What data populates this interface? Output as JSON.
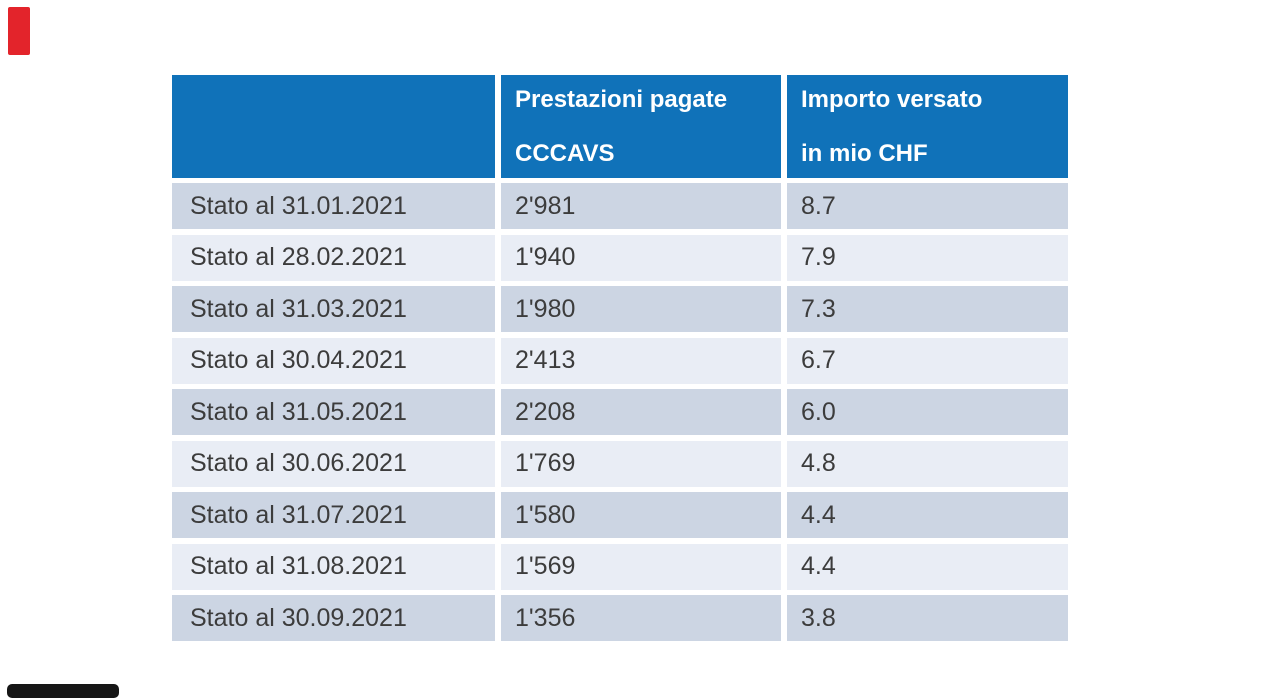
{
  "slide": {
    "background": "#ffffff"
  },
  "decorations": {
    "red_marker_color": "#e3242b",
    "black_bar_color": "#161616"
  },
  "table": {
    "header": {
      "col1_label": "",
      "col2": {
        "line1": "Prestazioni pagate",
        "line2": "CCCAVS"
      },
      "col3": {
        "line1": "Importo versato",
        "line2": "in mio CHF"
      }
    },
    "rows": [
      {
        "label": "Stato al 31.01.2021",
        "prestazioni": "2'981",
        "importo": "8.7"
      },
      {
        "label": "Stato al 28.02.2021",
        "prestazioni": "1'940",
        "importo": "7.9"
      },
      {
        "label": "Stato al 31.03.2021",
        "prestazioni": "1'980",
        "importo": "7.3"
      },
      {
        "label": "Stato al 30.04.2021",
        "prestazioni": "2'413",
        "importo": "6.7"
      },
      {
        "label": "Stato al 31.05.2021",
        "prestazioni": "2'208",
        "importo": "6.0"
      },
      {
        "label": "Stato al 30.06.2021",
        "prestazioni": "1'769",
        "importo": "4.8"
      },
      {
        "label": "Stato al 31.07.2021",
        "prestazioni": "1'580",
        "importo": "4.4"
      },
      {
        "label": "Stato al 31.08.2021",
        "prestazioni": "1'569",
        "importo": "4.4"
      },
      {
        "label": "Stato al 30.09.2021",
        "prestazioni": "1'356",
        "importo": "3.8"
      }
    ],
    "colors": {
      "header_bg": "#1072b9",
      "header_text": "#ffffff",
      "row_odd_bg": "#ccd5e3",
      "row_even_bg": "#e9edf5",
      "body_text": "#3c3c3c"
    }
  },
  "chart_data": {
    "type": "table",
    "columns": [
      "",
      "Prestazioni pagate CCCAVS",
      "Importo versato in mio CHF"
    ],
    "rows": [
      [
        "Stato al 31.01.2021",
        "2'981",
        "8.7"
      ],
      [
        "Stato al 28.02.2021",
        "1'940",
        "7.9"
      ],
      [
        "Stato al 31.03.2021",
        "1'980",
        "7.3"
      ],
      [
        "Stato al 30.04.2021",
        "2'413",
        "6.7"
      ],
      [
        "Stato al 31.05.2021",
        "2'208",
        "6.0"
      ],
      [
        "Stato al 30.06.2021",
        "1'769",
        "4.8"
      ],
      [
        "Stato al 31.07.2021",
        "1'580",
        "4.4"
      ],
      [
        "Stato al 31.08.2021",
        "1'569",
        "4.4"
      ],
      [
        "Stato al 30.09.2021",
        "1'356",
        "3.8"
      ]
    ]
  }
}
